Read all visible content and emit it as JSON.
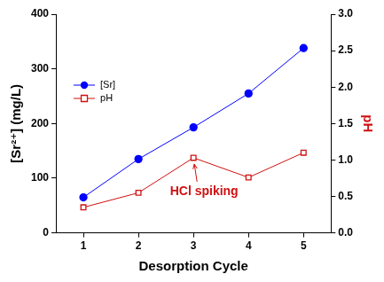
{
  "chart_data": {
    "type": "line",
    "categories": [
      "1",
      "2",
      "3",
      "4",
      "5"
    ],
    "x_label": "Desorption Cycle",
    "y_label": "[Sr²⁺] (mg/L)",
    "y2_label": "pH",
    "ylim": [
      0,
      400
    ],
    "yticks": [
      0,
      100,
      200,
      300,
      400
    ],
    "y2lim": [
      0,
      3
    ],
    "y2ticks": [
      {
        "value": 0,
        "label": "0.0"
      },
      {
        "value": 0.5,
        "label": "0.5"
      },
      {
        "value": 1,
        "label": "1.0"
      },
      {
        "value": 1.5,
        "label": "1.5"
      },
      {
        "value": 2,
        "label": "2.0"
      },
      {
        "value": 2.5,
        "label": "2.5"
      },
      {
        "value": 3,
        "label": "3.0"
      }
    ],
    "series": [
      {
        "name": "[Sr]",
        "color": "#0000ff",
        "marker": "circle",
        "values": [
          65,
          135,
          193,
          255,
          338
        ]
      },
      {
        "name": "pH",
        "color": "#d01010",
        "marker": "open square",
        "axis": "y2",
        "values": [
          0.35,
          0.55,
          1.03,
          0.76,
          1.1
        ]
      }
    ],
    "legend": "upper left",
    "grid": false,
    "annotations": [
      {
        "text": "HCl spiking",
        "series": "pH",
        "x": "3"
      }
    ]
  }
}
